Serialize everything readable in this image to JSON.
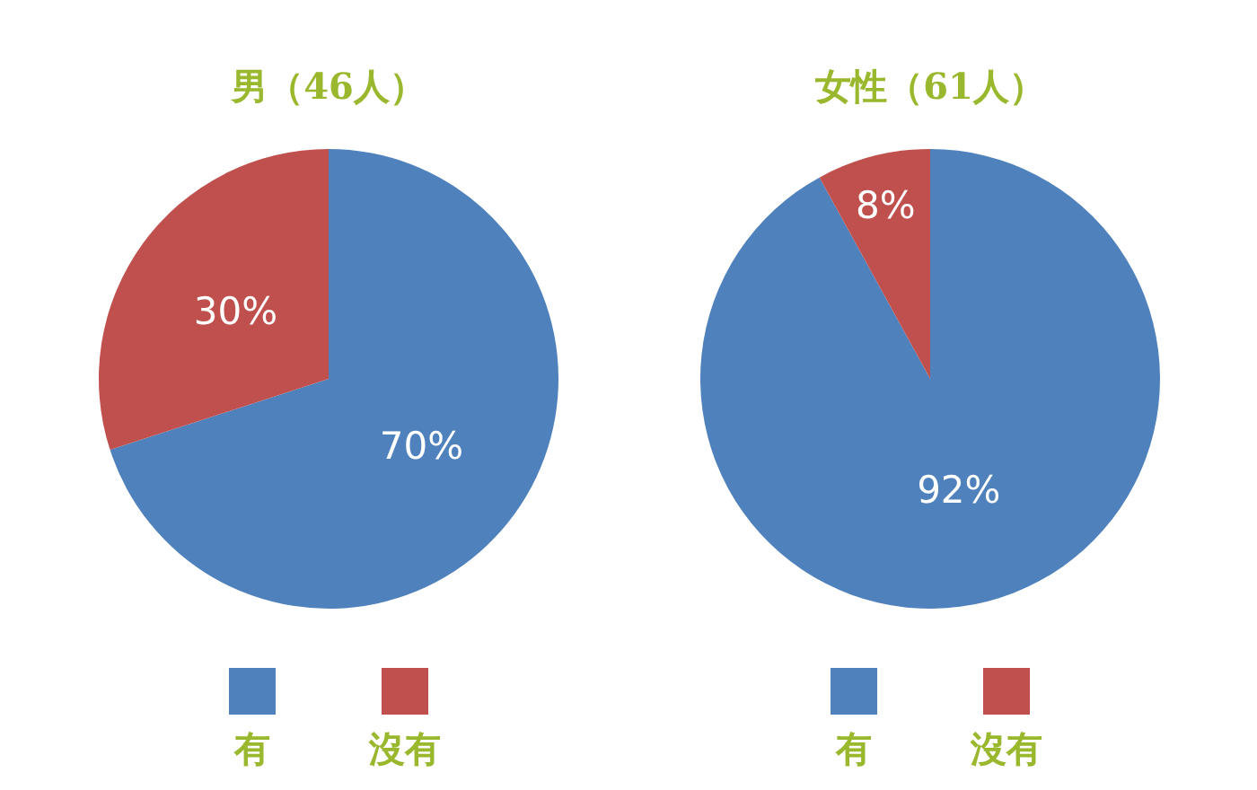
{
  "chart_data": [
    {
      "type": "pie",
      "title": "男（46人）",
      "categories": [
        "有",
        "沒有"
      ],
      "values": [
        70,
        30
      ],
      "value_labels": [
        "70%",
        "30%"
      ],
      "colors": [
        "#4f81bd",
        "#c0504d"
      ],
      "legend": "bottom"
    },
    {
      "type": "pie",
      "title": "女性（61人）",
      "categories": [
        "有",
        "沒有"
      ],
      "values": [
        92,
        8
      ],
      "value_labels": [
        "92%",
        "8%"
      ],
      "colors": [
        "#4f81bd",
        "#c0504d"
      ],
      "legend": "bottom"
    }
  ]
}
